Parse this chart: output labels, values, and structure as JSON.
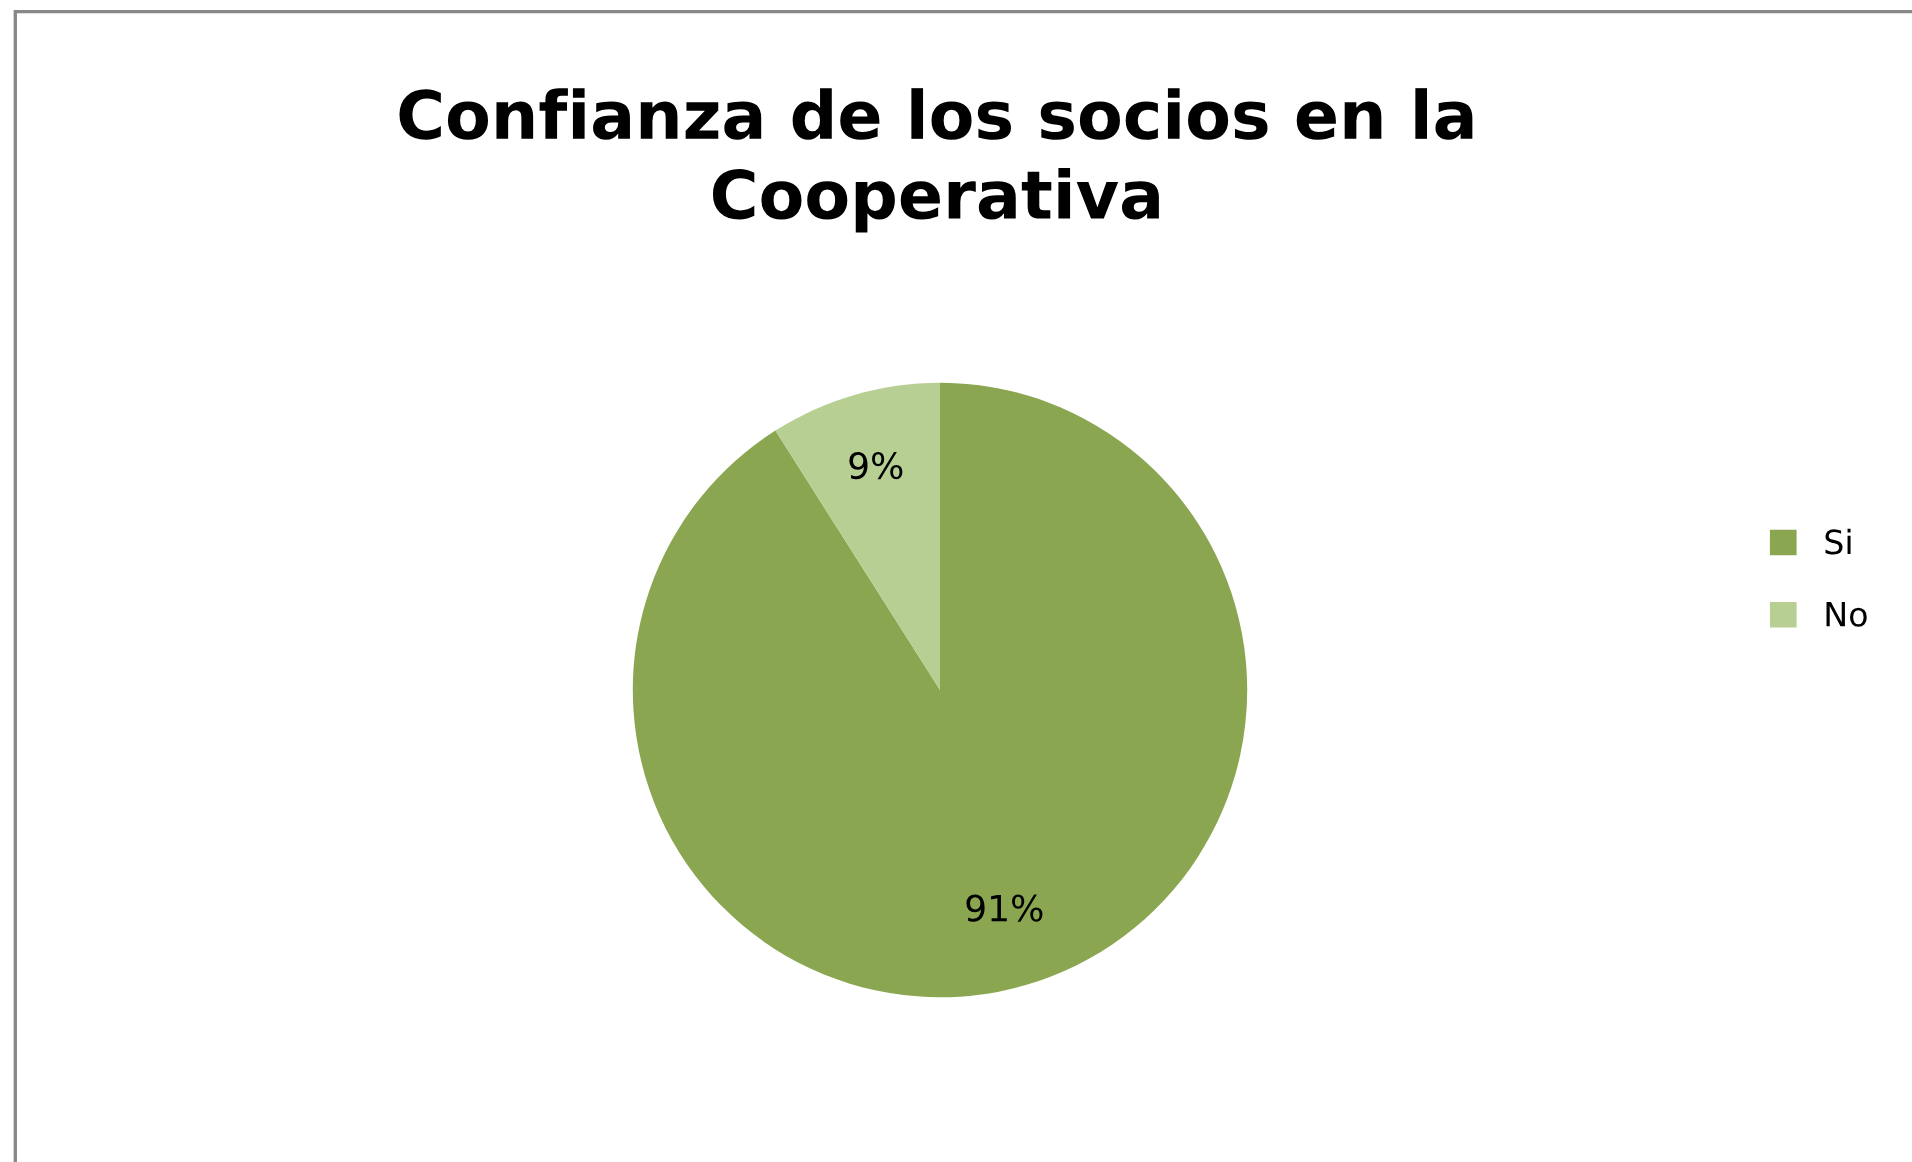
{
  "chart_data": {
    "type": "pie",
    "title": "Confianza de los socios en la\nCooperativa",
    "categories": [
      "Si",
      "No"
    ],
    "values": [
      91,
      9
    ],
    "colors": [
      "#8aa650",
      "#b8cf93"
    ],
    "value_labels": [
      "91%",
      "9%"
    ],
    "legend": "right"
  }
}
